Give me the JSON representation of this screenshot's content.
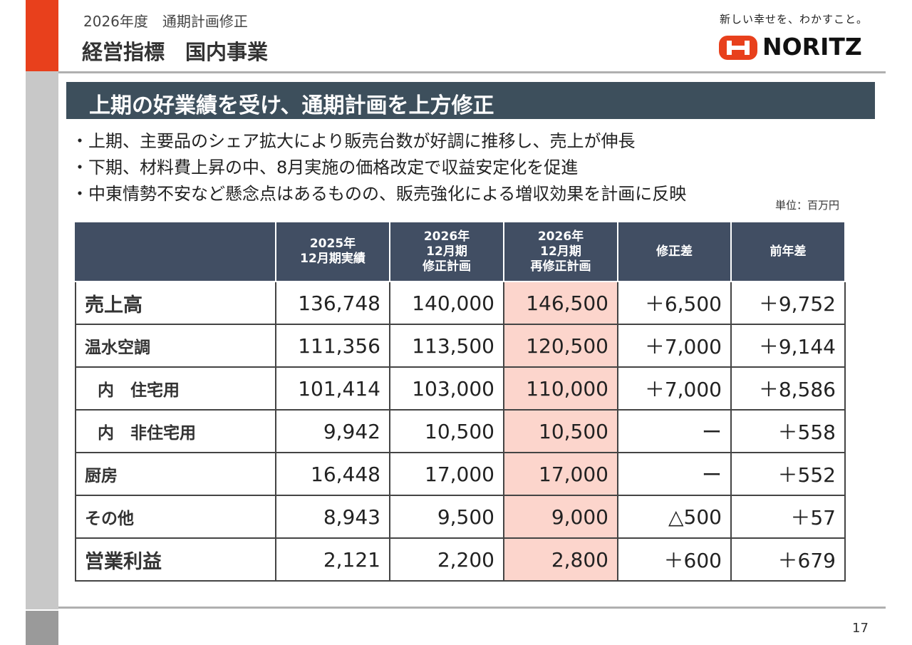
{
  "header": {
    "subtitle": "2026年度　通期計画修正",
    "title": "経営指標　国内事業",
    "tagline": "新しい幸せを、わかすこと。",
    "brand": "NORITZ"
  },
  "banner": "上期の好業績を受け、通期計画を上方修正",
  "bullets": [
    "・上期、主要品のシェア拡大により販売台数が好調に推移し、売上が伸長",
    "・下期、材料費上昇の中、8月実施の価格改定で収益安定化を促進",
    "・中東情勢不安など懸念点はあるものの、販売強化による増収効果を計画に反映"
  ],
  "unit": "単位：百万円",
  "table": {
    "columns": [
      "2025年\n12月期実績",
      "2026年\n12月期\n修正計画",
      "2026年\n12月期\n再修正計画",
      "修正差",
      "前年差"
    ],
    "rows": [
      [
        "売上高",
        "136,748",
        "140,000",
        "146,500",
        "＋6,500",
        "＋9,752"
      ],
      [
        "温水空調",
        "111,356",
        "113,500",
        "120,500",
        "＋7,000",
        "＋9,144"
      ],
      [
        "内　住宅用",
        "101,414",
        "103,000",
        "110,000",
        "＋7,000",
        "＋8,586"
      ],
      [
        "内　非住宅用",
        "9,942",
        "10,500",
        "10,500",
        "ー",
        "＋558"
      ],
      [
        "厨房",
        "16,448",
        "17,000",
        "17,000",
        "ー",
        "＋552"
      ],
      [
        "その他",
        "8,943",
        "9,500",
        "9,000",
        "△500",
        "＋57"
      ],
      [
        "営業利益",
        "2,121",
        "2,200",
        "2,800",
        "＋600",
        "＋679"
      ]
    ]
  },
  "page_number": "17"
}
